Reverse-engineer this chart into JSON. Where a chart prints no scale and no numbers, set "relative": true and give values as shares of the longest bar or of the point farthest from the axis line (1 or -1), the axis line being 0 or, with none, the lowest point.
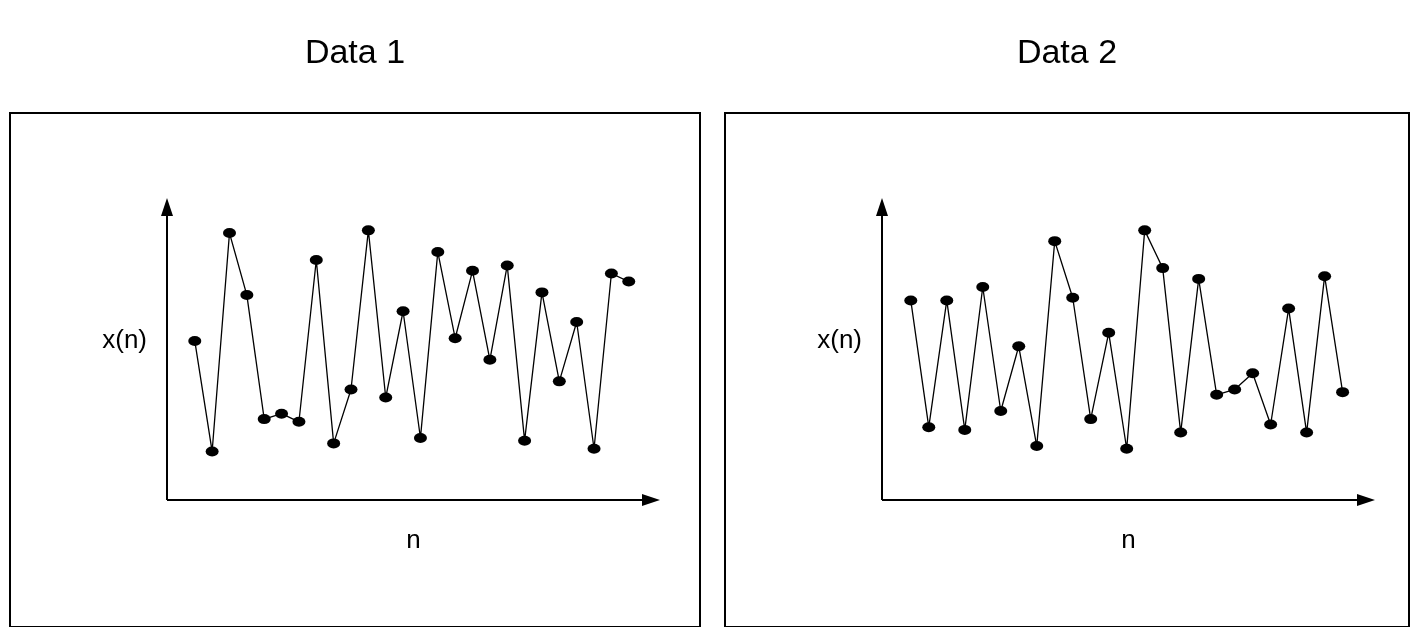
{
  "chart_data": [
    {
      "type": "line",
      "title": "Data 1",
      "xlabel": "n",
      "ylabel": "x(n)",
      "relative": true,
      "marker": "circle",
      "categories": [
        null,
        null,
        null,
        null,
        null,
        null,
        null,
        null,
        null,
        null,
        null,
        null,
        null,
        null,
        null,
        null,
        null,
        null,
        null,
        null,
        null,
        null,
        null,
        null,
        null,
        null
      ],
      "series": [
        {
          "color": "#000000",
          "values": [
            0.59,
            0.18,
            0.99,
            0.76,
            0.3,
            0.32,
            0.29,
            0.89,
            0.21,
            0.41,
            1,
            0.38,
            0.7,
            0.23,
            0.92,
            0.6,
            0.85,
            0.52,
            0.87,
            0.22,
            0.77,
            0.44,
            0.66,
            0.19,
            0.84,
            0.81
          ]
        }
      ]
    },
    {
      "type": "line",
      "title": "Data 2",
      "xlabel": "n",
      "ylabel": "x(n)",
      "relative": true,
      "marker": "circle",
      "categories": [
        null,
        null,
        null,
        null,
        null,
        null,
        null,
        null,
        null,
        null,
        null,
        null,
        null,
        null,
        null,
        null,
        null,
        null,
        null,
        null,
        null,
        null,
        null,
        null,
        null
      ],
      "series": [
        {
          "color": "#000000",
          "values": [
            0.74,
            0.27,
            0.74,
            0.26,
            0.79,
            0.33,
            0.57,
            0.2,
            0.96,
            0.75,
            0.3,
            0.62,
            0.19,
            1,
            0.86,
            0.25,
            0.82,
            0.39,
            0.41,
            0.47,
            0.28,
            0.71,
            0.25,
            0.83,
            0.4
          ]
        }
      ]
    }
  ]
}
